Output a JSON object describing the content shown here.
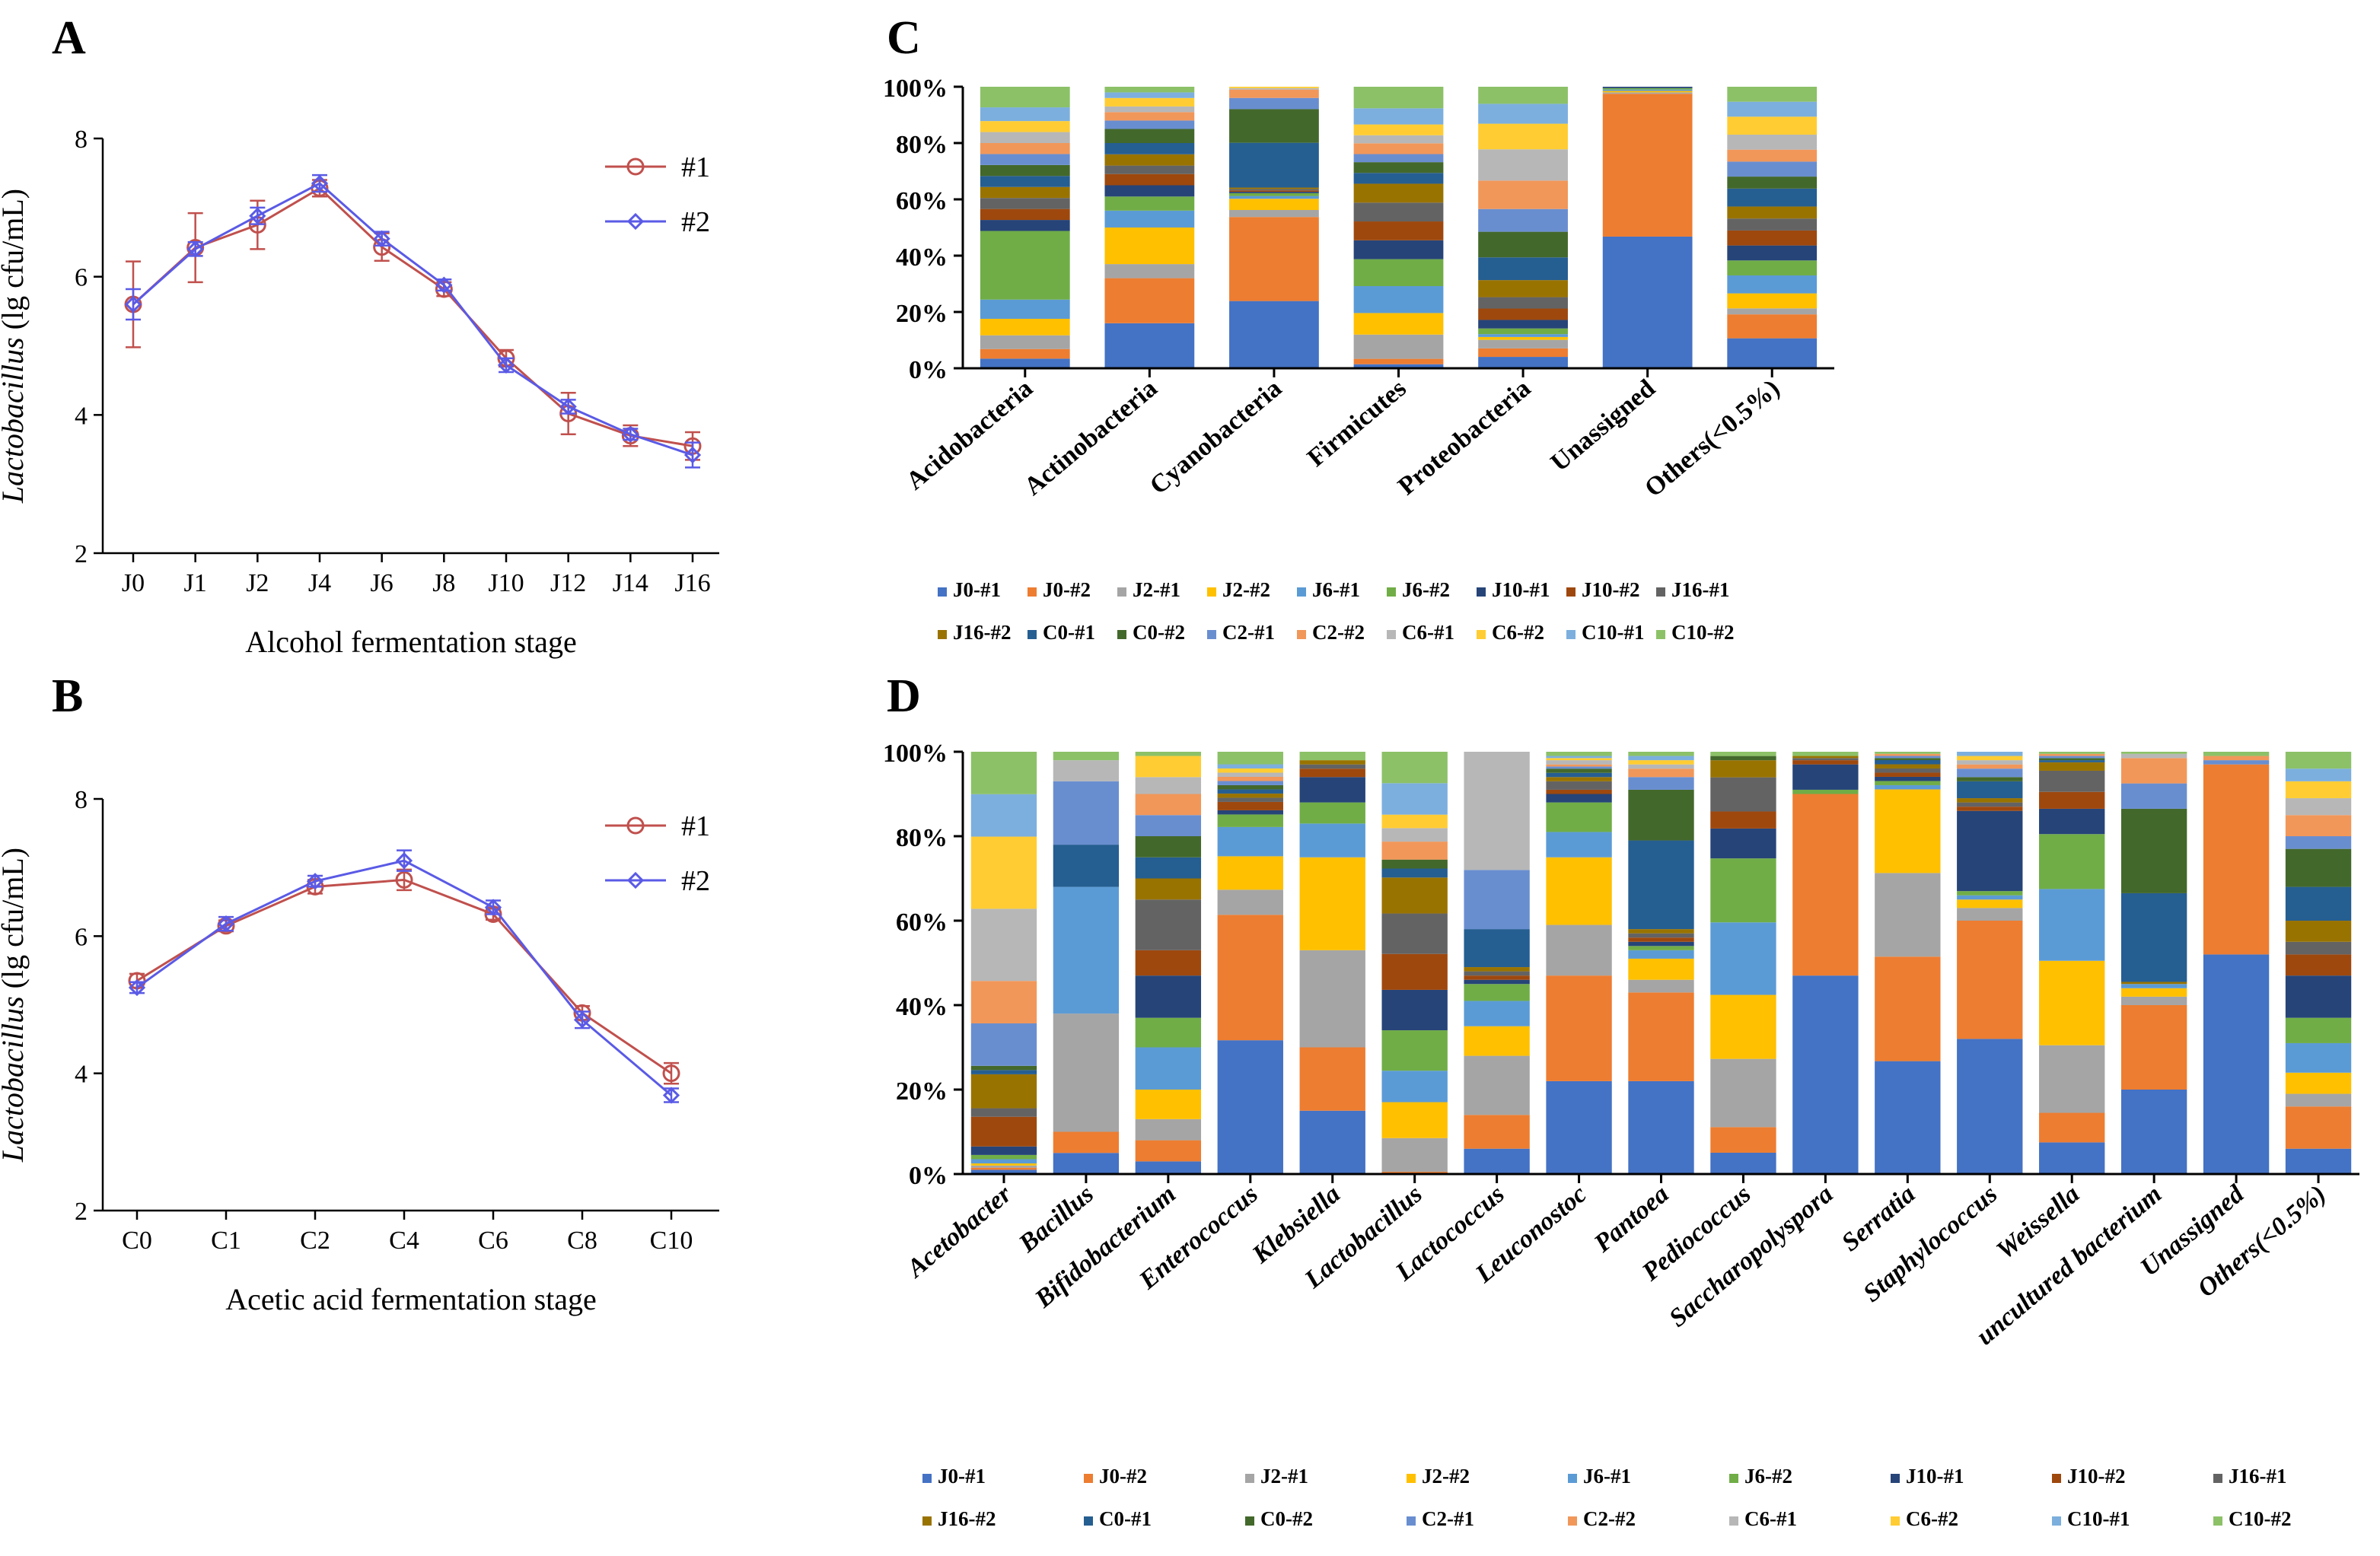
{
  "colors": [
    "#4472C4",
    "#ED7D31",
    "#A5A5A5",
    "#FFC000",
    "#5B9BD5",
    "#70AD47",
    "#264478",
    "#9E480E",
    "#636363",
    "#997300",
    "#255E91",
    "#43682B",
    "#698ED0",
    "#F1975A",
    "#B7B7B7",
    "#FFCD33",
    "#7CAFDD",
    "#8CC168"
  ],
  "line_colors": {
    "s1": "#C0504D",
    "s2": "#5A5AE6"
  },
  "chart_data": [
    {
      "id": "A",
      "type": "line",
      "letter": "A",
      "xlabel": "Alcohol fermentation stage",
      "ylabel": "Lactobacillus (lg cfu/mL)",
      "ylabel_italic": "Lactobacillus",
      "ylabel_rest": " (lg cfu/mL)",
      "ylim": [
        2,
        8
      ],
      "yticks": [
        "2",
        "4",
        "6",
        "8"
      ],
      "categories": [
        "J0",
        "J1",
        "J2",
        "J4",
        "J6",
        "J8",
        "J10",
        "J12",
        "J14",
        "J16"
      ],
      "series": [
        {
          "name": "#1",
          "values": [
            5.6,
            6.42,
            6.75,
            7.28,
            6.43,
            5.82,
            4.82,
            4.02,
            3.7,
            3.55
          ],
          "errors": [
            0.62,
            0.5,
            0.35,
            0.12,
            0.2,
            0.1,
            0.12,
            0.3,
            0.15,
            0.2
          ]
        },
        {
          "name": "#2",
          "values": [
            5.6,
            6.4,
            6.88,
            7.35,
            6.55,
            5.88,
            4.72,
            4.12,
            3.72,
            3.42
          ],
          "errors": [
            0.22,
            0.1,
            0.12,
            0.12,
            0.1,
            0.08,
            0.1,
            0.1,
            0.08,
            0.18
          ]
        }
      ]
    },
    {
      "id": "B",
      "type": "line",
      "letter": "B",
      "xlabel": "Acetic acid fermentation stage",
      "ylabel": "Lactobacillus (lg cfu/mL)",
      "ylabel_italic": "Lactobacillus",
      "ylabel_rest": " (lg cfu/mL)",
      "ylim": [
        2,
        8
      ],
      "yticks": [
        "2",
        "4",
        "6",
        "8"
      ],
      "categories": [
        "C0",
        "C1",
        "C2",
        "C4",
        "C6",
        "C8",
        "C10"
      ],
      "series": [
        {
          "name": "#1",
          "values": [
            5.35,
            6.15,
            6.72,
            6.82,
            6.32,
            4.88,
            4.0
          ],
          "errors": [
            0.1,
            0.08,
            0.1,
            0.15,
            0.08,
            0.1,
            0.15
          ]
        },
        {
          "name": "#2",
          "values": [
            5.25,
            6.18,
            6.8,
            7.1,
            6.42,
            4.78,
            3.68
          ],
          "errors": [
            0.08,
            0.1,
            0.08,
            0.15,
            0.1,
            0.12,
            0.1
          ]
        }
      ]
    },
    {
      "id": "C",
      "type": "bar",
      "stacked": true,
      "letter": "C",
      "ylim": [
        0,
        100
      ],
      "yticks": [
        "0%",
        "20%",
        "40%",
        "60%",
        "80%",
        "100%"
      ],
      "categories": [
        "Acidobacteria",
        "Actinobacteria",
        "Cyanobacteria",
        "Firmicutes",
        "Proteobacteria",
        "Unassigned",
        "Others(<0.5%)"
      ],
      "italic_categories": false,
      "series_names": [
        "J0-#1",
        "J0-#2",
        "J2-#1",
        "J2-#2",
        "J6-#1",
        "J6-#2",
        "J10-#1",
        "J10-#2",
        "J16-#1",
        "J16-#2",
        "C0-#1",
        "C0-#2",
        "C2-#1",
        "C2-#2",
        "C6-#1",
        "C6-#2",
        "C10-#1",
        "C10-#2"
      ],
      "values": [
        [
          3.5,
          3.5,
          5,
          6,
          7,
          25,
          4,
          4,
          4,
          4,
          4,
          4,
          4,
          4,
          4,
          4,
          5,
          7.5
        ],
        [
          16,
          16,
          5,
          13,
          6,
          5,
          4,
          4,
          3,
          4,
          4,
          5,
          3,
          3,
          2,
          3,
          2,
          2
        ],
        [
          24,
          30,
          2.5,
          4,
          1,
          1,
          0.5,
          0.5,
          0.5,
          0.5,
          16,
          12,
          4,
          3,
          0.5,
          0.5,
          0,
          0
        ],
        [
          1.5,
          2,
          9,
          8,
          10,
          10,
          7,
          7,
          7,
          7,
          4,
          4,
          3,
          4,
          3,
          4,
          6,
          8
        ],
        [
          4,
          3,
          3,
          1,
          1,
          2,
          3,
          4,
          4,
          6,
          8,
          9,
          8,
          10,
          11,
          9,
          7,
          6
        ],
        [
          47,
          51,
          0.5,
          0.5,
          0.5,
          0.5,
          0.5,
          0,
          0,
          0,
          0,
          0,
          0,
          0,
          0,
          0,
          0,
          0
        ],
        [
          10,
          8,
          2,
          5,
          6,
          5,
          5,
          5,
          4,
          4,
          6,
          4,
          5,
          4,
          5,
          6,
          5,
          5
        ]
      ]
    },
    {
      "id": "D",
      "type": "bar",
      "stacked": true,
      "letter": "D",
      "ylim": [
        0,
        100
      ],
      "yticks": [
        "0%",
        "20%",
        "40%",
        "60%",
        "80%",
        "100%"
      ],
      "categories": [
        "Acetobacter",
        "Bacillus",
        "Bifidobacterium",
        "Enterococcus",
        "Klebsiella",
        "Lactobacillus",
        "Lactococcus",
        "Leuconostoc",
        "Pantoea",
        "Pediococcus",
        "Saccharopolyspora",
        "Serratia",
        "Staphylococcus",
        "Weissella",
        "uncultured bacterium",
        "Unassigned",
        "Others(<0.5%)"
      ],
      "italic_categories": true,
      "series_names": [
        "J0-#1",
        "J0-#2",
        "J2-#1",
        "J2-#2",
        "J6-#1",
        "J6-#2",
        "J10-#1",
        "J10-#2",
        "J16-#1",
        "J16-#2",
        "C0-#1",
        "C0-#2",
        "C2-#1",
        "C2-#2",
        "C6-#1",
        "C6-#2",
        "C10-#1",
        "C10-#2"
      ],
      "values": [
        [
          1,
          0.5,
          0.5,
          0.5,
          1,
          1,
          2,
          7,
          2,
          8,
          1,
          1,
          10,
          10,
          17,
          17,
          10,
          10
        ],
        [
          5,
          5,
          28,
          0,
          30,
          0,
          0,
          0,
          0,
          0,
          10,
          0,
          15,
          0,
          5,
          0,
          0,
          2
        ],
        [
          3,
          5,
          5,
          7,
          10,
          7,
          10,
          6,
          12,
          5,
          5,
          5,
          5,
          5,
          4,
          5,
          0,
          1
        ],
        [
          32,
          30,
          6,
          8,
          7,
          3,
          1,
          2,
          1,
          1,
          1,
          1,
          1,
          1,
          1,
          1,
          1,
          3
        ],
        [
          15,
          15,
          23,
          22,
          8,
          5,
          6,
          2,
          1,
          1,
          0,
          0,
          0,
          0,
          0,
          0,
          0,
          2
        ],
        [
          0,
          0.5,
          7.5,
          8,
          7,
          9,
          9,
          8,
          9,
          8,
          2,
          2,
          0,
          4,
          3,
          3,
          7,
          7
        ],
        [
          6,
          8,
          14,
          7,
          6,
          4,
          1,
          1,
          1,
          1,
          9,
          0,
          14,
          0,
          28,
          0,
          0,
          0
        ],
        [
          22,
          25,
          12,
          16,
          6,
          7,
          2,
          1,
          2,
          1,
          1,
          1,
          0.5,
          0.5,
          1,
          0.5,
          0.5,
          1
        ],
        [
          22,
          21,
          3,
          5,
          2,
          1,
          1,
          1,
          1,
          1,
          21,
          12,
          3,
          2,
          1,
          1,
          1,
          1
        ],
        [
          5,
          6,
          16,
          15,
          17,
          15,
          7,
          4,
          8,
          4,
          0,
          1,
          0,
          0,
          0,
          0,
          0,
          1
        ],
        [
          47,
          43,
          0,
          0,
          0,
          1,
          6,
          1,
          0.5,
          0.5,
          0,
          0,
          0,
          0,
          0,
          0,
          0,
          1
        ],
        [
          27,
          25,
          20,
          20,
          1,
          1,
          1,
          1,
          1,
          1,
          1,
          0.5,
          0.5,
          0.5,
          0,
          0,
          0,
          0.5
        ],
        [
          32,
          28,
          3,
          2,
          1,
          1,
          19,
          1,
          1,
          1,
          4,
          1,
          2,
          1,
          1,
          1,
          1,
          0
        ],
        [
          7.5,
          7,
          16,
          20,
          17,
          13,
          6,
          4,
          5,
          2,
          0.5,
          0.5,
          0.5,
          0.5,
          0,
          0,
          0,
          0.5
        ],
        [
          20,
          20,
          2,
          2,
          1,
          0,
          0,
          0,
          0,
          0.5,
          21,
          20,
          6,
          6,
          1,
          0,
          0,
          0.5
        ],
        [
          52,
          45,
          0,
          0,
          0,
          0,
          0,
          0,
          0,
          0,
          0,
          0,
          1,
          1,
          0,
          0,
          0,
          1
        ],
        [
          6,
          10,
          3,
          5,
          7,
          6,
          10,
          5,
          3,
          5,
          8,
          9,
          3,
          5,
          4,
          4,
          3,
          4
        ]
      ]
    }
  ]
}
